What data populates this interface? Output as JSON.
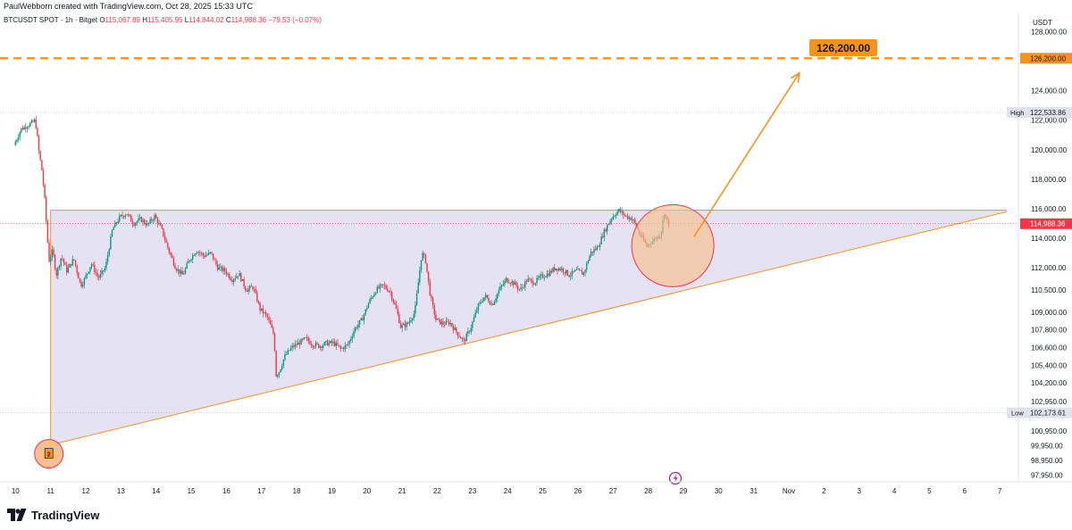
{
  "header": {
    "created_by": "PaulWebborn created with TradingView.com, Oct 28, 2025 15:33 UTC"
  },
  "legend": {
    "symbol": "BTCUSDT SPOT · 1h · Bitget",
    "open_label": "O",
    "open": "115,067.89",
    "high_label": "H",
    "high": "115,405.95",
    "low_label": "L",
    "low": "114,844.02",
    "close_label": "C",
    "close": "114,988.36",
    "change": "−79.53 (−0.07%)"
  },
  "branding": {
    "name": "TradingView"
  },
  "colors": {
    "up": "#089981",
    "down": "#f23645",
    "orange": "#f7931a",
    "triangle_fill": "#dcd8f0",
    "circle_fill": "#f8c08e",
    "price_label_bg": "#f23645"
  },
  "chart_data": {
    "type": "candlestick",
    "symbol": "BTCUSDT",
    "interval": "1h",
    "currency": "USDT",
    "ylim": [
      97500,
      129300
    ],
    "yticks": [
      "128,000.00",
      "126,200.00",
      "124,000.00",
      "122,000.00",
      "120,000.00",
      "118,000.00",
      "116,000.00",
      "114,000.00",
      "112,000.00",
      "110,500.00",
      "109,000.00",
      "107,800.00",
      "106,600.00",
      "105,400.00",
      "104,200.00",
      "102,950.00",
      "100,950.00",
      "99,950.00",
      "98,950.00",
      "97,950.00"
    ],
    "xticks": [
      "10",
      "11",
      "12",
      "13",
      "14",
      "15",
      "16",
      "17",
      "18",
      "19",
      "20",
      "21",
      "22",
      "23",
      "24",
      "25",
      "26",
      "27",
      "28",
      "29",
      "30",
      "31",
      "Nov",
      "2",
      "3",
      "4",
      "5",
      "6",
      "7"
    ],
    "price_points": [
      [
        10.0,
        120300
      ],
      [
        10.2,
        121400
      ],
      [
        10.5,
        121800
      ],
      [
        10.6,
        122000
      ],
      [
        10.65,
        121200
      ],
      [
        10.7,
        120000
      ],
      [
        10.8,
        118500
      ],
      [
        10.88,
        116500
      ],
      [
        10.95,
        114000
      ],
      [
        11.0,
        112500
      ],
      [
        11.1,
        113200
      ],
      [
        11.2,
        111500
      ],
      [
        11.35,
        112800
      ],
      [
        11.5,
        111800
      ],
      [
        11.7,
        112600
      ],
      [
        11.9,
        110800
      ],
      [
        12.0,
        111200
      ],
      [
        12.2,
        112300
      ],
      [
        12.4,
        111300
      ],
      [
        12.6,
        112000
      ],
      [
        12.8,
        114600
      ],
      [
        13.0,
        115400
      ],
      [
        13.2,
        115700
      ],
      [
        13.4,
        115000
      ],
      [
        13.6,
        115300
      ],
      [
        13.8,
        114900
      ],
      [
        14.0,
        115500
      ],
      [
        14.2,
        114600
      ],
      [
        14.4,
        113200
      ],
      [
        14.6,
        112000
      ],
      [
        14.8,
        111500
      ],
      [
        15.0,
        112600
      ],
      [
        15.2,
        113200
      ],
      [
        15.4,
        112800
      ],
      [
        15.6,
        113000
      ],
      [
        15.8,
        112000
      ],
      [
        16.0,
        111800
      ],
      [
        16.2,
        111200
      ],
      [
        16.4,
        111600
      ],
      [
        16.6,
        110500
      ],
      [
        16.8,
        110700
      ],
      [
        17.0,
        109200
      ],
      [
        17.2,
        108700
      ],
      [
        17.4,
        107400
      ],
      [
        17.45,
        104700
      ],
      [
        17.55,
        105000
      ],
      [
        17.7,
        106000
      ],
      [
        17.9,
        106600
      ],
      [
        18.1,
        106900
      ],
      [
        18.3,
        107200
      ],
      [
        18.5,
        106800
      ],
      [
        18.7,
        106700
      ],
      [
        18.9,
        106900
      ],
      [
        19.1,
        106900
      ],
      [
        19.3,
        106500
      ],
      [
        19.5,
        106800
      ],
      [
        19.7,
        107900
      ],
      [
        19.9,
        108500
      ],
      [
        20.1,
        109700
      ],
      [
        20.3,
        110500
      ],
      [
        20.5,
        110800
      ],
      [
        20.7,
        110400
      ],
      [
        20.9,
        109000
      ],
      [
        21.0,
        108000
      ],
      [
        21.2,
        108200
      ],
      [
        21.4,
        109000
      ],
      [
        21.6,
        113000
      ],
      [
        21.7,
        112600
      ],
      [
        21.85,
        110000
      ],
      [
        22.0,
        108500
      ],
      [
        22.2,
        108200
      ],
      [
        22.4,
        108300
      ],
      [
        22.6,
        107600
      ],
      [
        22.8,
        107000
      ],
      [
        23.0,
        108000
      ],
      [
        23.2,
        109400
      ],
      [
        23.4,
        110100
      ],
      [
        23.6,
        109500
      ],
      [
        23.8,
        110500
      ],
      [
        24.0,
        111200
      ],
      [
        24.2,
        111000
      ],
      [
        24.4,
        110500
      ],
      [
        24.6,
        111200
      ],
      [
        24.8,
        111000
      ],
      [
        25.0,
        111400
      ],
      [
        25.2,
        111600
      ],
      [
        25.4,
        112000
      ],
      [
        25.6,
        111900
      ],
      [
        25.8,
        111500
      ],
      [
        26.0,
        111800
      ],
      [
        26.2,
        111600
      ],
      [
        26.4,
        113000
      ],
      [
        26.6,
        113400
      ],
      [
        26.8,
        114500
      ],
      [
        27.0,
        115400
      ],
      [
        27.2,
        115900
      ],
      [
        27.4,
        115500
      ],
      [
        27.6,
        115300
      ],
      [
        27.8,
        114300
      ],
      [
        28.0,
        113500
      ],
      [
        28.2,
        113900
      ],
      [
        28.4,
        114300
      ],
      [
        28.5,
        115800
      ],
      [
        28.6,
        114988
      ]
    ],
    "annotations": {
      "target_price": "126,200.00",
      "high_label": "High",
      "high_value": "122,533.86",
      "low_label": "Low",
      "low_value": "102,173.61",
      "current_price": "114,988.36",
      "resistance": 115900,
      "target_level": 126200,
      "high": 122533.86,
      "low": 102173.61,
      "current": 114988.36,
      "support_line": [
        [
          11.0,
          100000
        ],
        [
          38.2,
          115800
        ]
      ],
      "triangle": [
        [
          11.0,
          115900
        ],
        [
          38.2,
          115900
        ],
        [
          38.2,
          115800
        ],
        [
          11.0,
          100000
        ]
      ],
      "arrow": [
        [
          29.3,
          114100
        ],
        [
          32.3,
          125200
        ]
      ],
      "marker_number": "2",
      "event_icon": "lightning-icon"
    }
  }
}
